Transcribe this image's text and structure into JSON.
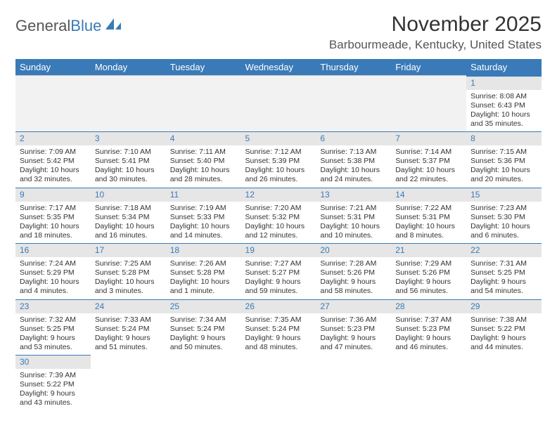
{
  "logo": {
    "text_main": "General",
    "text_accent": "Blue"
  },
  "title": "November 2025",
  "location": "Barbourmeade, Kentucky, United States",
  "colors": {
    "header_bg": "#3a7ab8",
    "header_text": "#ffffff",
    "daynum_bg": "#e6e6e6",
    "daynum_text": "#3a7ab8",
    "body_text": "#333333"
  },
  "week_days": [
    "Sunday",
    "Monday",
    "Tuesday",
    "Wednesday",
    "Thursday",
    "Friday",
    "Saturday"
  ],
  "leading_blanks": 6,
  "days": [
    {
      "n": "1",
      "sr": "Sunrise: 8:08 AM",
      "ss": "Sunset: 6:43 PM",
      "dl": "Daylight: 10 hours and 35 minutes."
    },
    {
      "n": "2",
      "sr": "Sunrise: 7:09 AM",
      "ss": "Sunset: 5:42 PM",
      "dl": "Daylight: 10 hours and 32 minutes."
    },
    {
      "n": "3",
      "sr": "Sunrise: 7:10 AM",
      "ss": "Sunset: 5:41 PM",
      "dl": "Daylight: 10 hours and 30 minutes."
    },
    {
      "n": "4",
      "sr": "Sunrise: 7:11 AM",
      "ss": "Sunset: 5:40 PM",
      "dl": "Daylight: 10 hours and 28 minutes."
    },
    {
      "n": "5",
      "sr": "Sunrise: 7:12 AM",
      "ss": "Sunset: 5:39 PM",
      "dl": "Daylight: 10 hours and 26 minutes."
    },
    {
      "n": "6",
      "sr": "Sunrise: 7:13 AM",
      "ss": "Sunset: 5:38 PM",
      "dl": "Daylight: 10 hours and 24 minutes."
    },
    {
      "n": "7",
      "sr": "Sunrise: 7:14 AM",
      "ss": "Sunset: 5:37 PM",
      "dl": "Daylight: 10 hours and 22 minutes."
    },
    {
      "n": "8",
      "sr": "Sunrise: 7:15 AM",
      "ss": "Sunset: 5:36 PM",
      "dl": "Daylight: 10 hours and 20 minutes."
    },
    {
      "n": "9",
      "sr": "Sunrise: 7:17 AM",
      "ss": "Sunset: 5:35 PM",
      "dl": "Daylight: 10 hours and 18 minutes."
    },
    {
      "n": "10",
      "sr": "Sunrise: 7:18 AM",
      "ss": "Sunset: 5:34 PM",
      "dl": "Daylight: 10 hours and 16 minutes."
    },
    {
      "n": "11",
      "sr": "Sunrise: 7:19 AM",
      "ss": "Sunset: 5:33 PM",
      "dl": "Daylight: 10 hours and 14 minutes."
    },
    {
      "n": "12",
      "sr": "Sunrise: 7:20 AM",
      "ss": "Sunset: 5:32 PM",
      "dl": "Daylight: 10 hours and 12 minutes."
    },
    {
      "n": "13",
      "sr": "Sunrise: 7:21 AM",
      "ss": "Sunset: 5:31 PM",
      "dl": "Daylight: 10 hours and 10 minutes."
    },
    {
      "n": "14",
      "sr": "Sunrise: 7:22 AM",
      "ss": "Sunset: 5:31 PM",
      "dl": "Daylight: 10 hours and 8 minutes."
    },
    {
      "n": "15",
      "sr": "Sunrise: 7:23 AM",
      "ss": "Sunset: 5:30 PM",
      "dl": "Daylight: 10 hours and 6 minutes."
    },
    {
      "n": "16",
      "sr": "Sunrise: 7:24 AM",
      "ss": "Sunset: 5:29 PM",
      "dl": "Daylight: 10 hours and 4 minutes."
    },
    {
      "n": "17",
      "sr": "Sunrise: 7:25 AM",
      "ss": "Sunset: 5:28 PM",
      "dl": "Daylight: 10 hours and 3 minutes."
    },
    {
      "n": "18",
      "sr": "Sunrise: 7:26 AM",
      "ss": "Sunset: 5:28 PM",
      "dl": "Daylight: 10 hours and 1 minute."
    },
    {
      "n": "19",
      "sr": "Sunrise: 7:27 AM",
      "ss": "Sunset: 5:27 PM",
      "dl": "Daylight: 9 hours and 59 minutes."
    },
    {
      "n": "20",
      "sr": "Sunrise: 7:28 AM",
      "ss": "Sunset: 5:26 PM",
      "dl": "Daylight: 9 hours and 58 minutes."
    },
    {
      "n": "21",
      "sr": "Sunrise: 7:29 AM",
      "ss": "Sunset: 5:26 PM",
      "dl": "Daylight: 9 hours and 56 minutes."
    },
    {
      "n": "22",
      "sr": "Sunrise: 7:31 AM",
      "ss": "Sunset: 5:25 PM",
      "dl": "Daylight: 9 hours and 54 minutes."
    },
    {
      "n": "23",
      "sr": "Sunrise: 7:32 AM",
      "ss": "Sunset: 5:25 PM",
      "dl": "Daylight: 9 hours and 53 minutes."
    },
    {
      "n": "24",
      "sr": "Sunrise: 7:33 AM",
      "ss": "Sunset: 5:24 PM",
      "dl": "Daylight: 9 hours and 51 minutes."
    },
    {
      "n": "25",
      "sr": "Sunrise: 7:34 AM",
      "ss": "Sunset: 5:24 PM",
      "dl": "Daylight: 9 hours and 50 minutes."
    },
    {
      "n": "26",
      "sr": "Sunrise: 7:35 AM",
      "ss": "Sunset: 5:24 PM",
      "dl": "Daylight: 9 hours and 48 minutes."
    },
    {
      "n": "27",
      "sr": "Sunrise: 7:36 AM",
      "ss": "Sunset: 5:23 PM",
      "dl": "Daylight: 9 hours and 47 minutes."
    },
    {
      "n": "28",
      "sr": "Sunrise: 7:37 AM",
      "ss": "Sunset: 5:23 PM",
      "dl": "Daylight: 9 hours and 46 minutes."
    },
    {
      "n": "29",
      "sr": "Sunrise: 7:38 AM",
      "ss": "Sunset: 5:22 PM",
      "dl": "Daylight: 9 hours and 44 minutes."
    },
    {
      "n": "30",
      "sr": "Sunrise: 7:39 AM",
      "ss": "Sunset: 5:22 PM",
      "dl": "Daylight: 9 hours and 43 minutes."
    }
  ]
}
